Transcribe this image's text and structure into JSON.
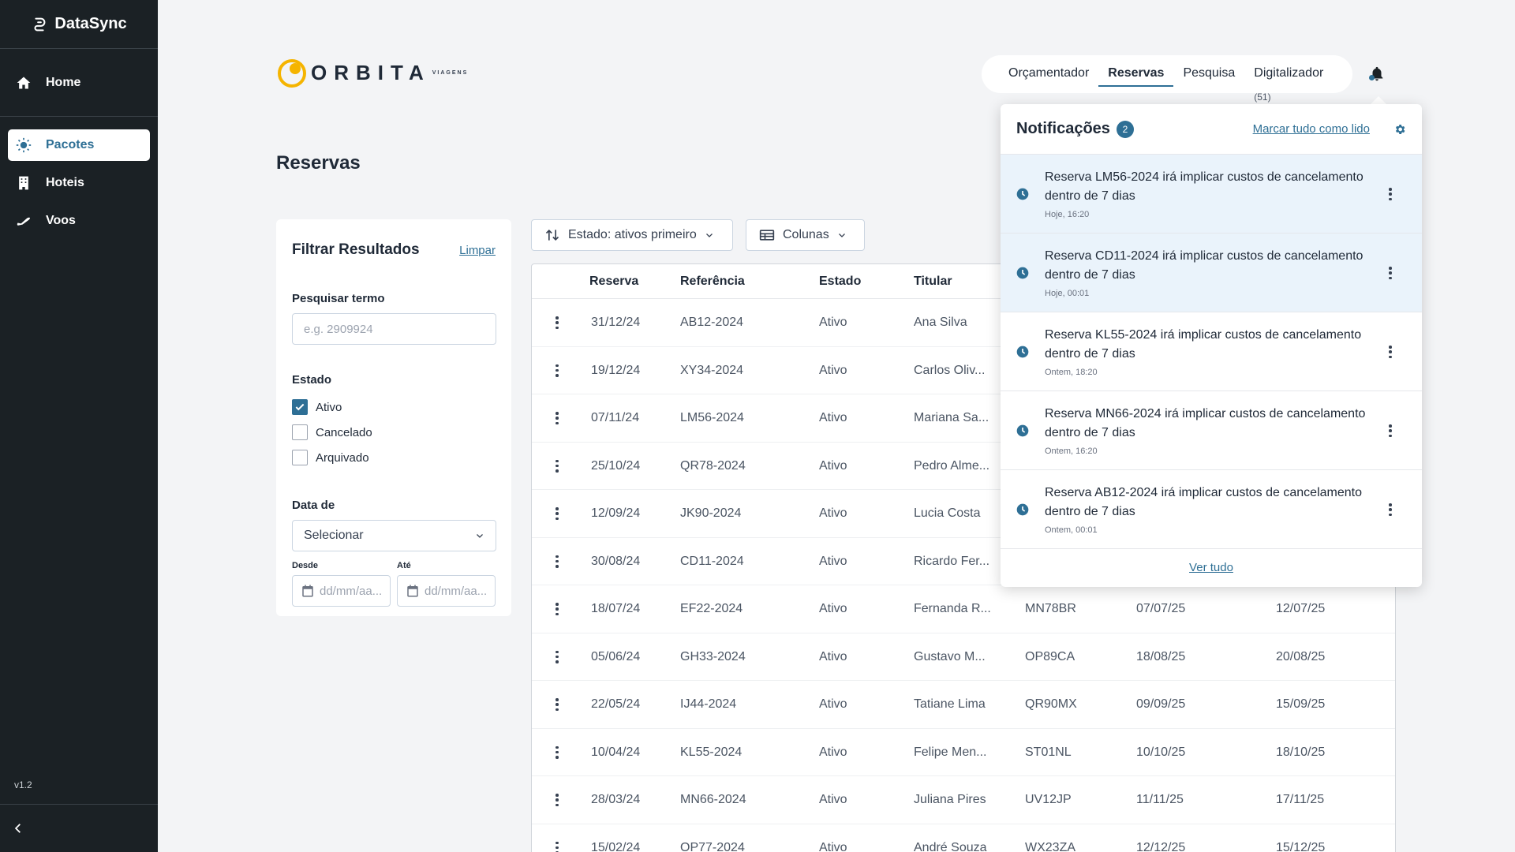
{
  "sidebar": {
    "brand": "DataSync",
    "home": "Home",
    "items": [
      {
        "label": "Pacotes"
      },
      {
        "label": "Hoteis"
      },
      {
        "label": "Voos"
      }
    ],
    "version": "v1.2"
  },
  "logo": {
    "text": "ORBITA",
    "sub": "VIAGENS"
  },
  "topnav": {
    "items": [
      "Orçamentador",
      "Reservas",
      "Pesquisa",
      "Digitalizador"
    ],
    "digitalizador_count": "(51)"
  },
  "page_title": "Reservas",
  "filter": {
    "title": "Filtrar Resultados",
    "clear": "Limpar",
    "search_label": "Pesquisar termo",
    "search_placeholder": "e.g. 2909924",
    "estado_label": "Estado",
    "estado_options": [
      {
        "label": "Ativo",
        "checked": true
      },
      {
        "label": "Cancelado",
        "checked": false
      },
      {
        "label": "Arquivado",
        "checked": false
      }
    ],
    "data_label": "Data de",
    "data_select": "Selecionar",
    "desde_label": "Desde",
    "ate_label": "Até",
    "date_placeholder": "dd/mm/aa..."
  },
  "toolbar": {
    "sort": "Estado: ativos primeiro",
    "columns": "Colunas"
  },
  "table": {
    "headers": [
      "Reserva",
      "Referência",
      "Estado",
      "Titular"
    ],
    "rows": [
      {
        "reserva": "31/12/24",
        "ref": "AB12-2024",
        "estado": "Ativo",
        "titular": "Ana Silva",
        "cod": "",
        "d1": "",
        "d2": ""
      },
      {
        "reserva": "19/12/24",
        "ref": "XY34-2024",
        "estado": "Ativo",
        "titular": "Carlos Oliv...",
        "cod": "",
        "d1": "",
        "d2": ""
      },
      {
        "reserva": "07/11/24",
        "ref": "LM56-2024",
        "estado": "Ativo",
        "titular": "Mariana Sa...",
        "cod": "",
        "d1": "",
        "d2": ""
      },
      {
        "reserva": "25/10/24",
        "ref": "QR78-2024",
        "estado": "Ativo",
        "titular": "Pedro Alme...",
        "cod": "",
        "d1": "",
        "d2": ""
      },
      {
        "reserva": "12/09/24",
        "ref": "JK90-2024",
        "estado": "Ativo",
        "titular": "Lucia Costa",
        "cod": "",
        "d1": "",
        "d2": ""
      },
      {
        "reserva": "30/08/24",
        "ref": "CD11-2024",
        "estado": "Ativo",
        "titular": "Ricardo Fer...",
        "cod": "",
        "d1": "",
        "d2": ""
      },
      {
        "reserva": "18/07/24",
        "ref": "EF22-2024",
        "estado": "Ativo",
        "titular": "Fernanda R...",
        "cod": "MN78BR",
        "d1": "07/07/25",
        "d2": "12/07/25"
      },
      {
        "reserva": "05/06/24",
        "ref": "GH33-2024",
        "estado": "Ativo",
        "titular": "Gustavo M...",
        "cod": "OP89CA",
        "d1": "18/08/25",
        "d2": "20/08/25"
      },
      {
        "reserva": "22/05/24",
        "ref": "IJ44-2024",
        "estado": "Ativo",
        "titular": "Tatiane Lima",
        "cod": "QR90MX",
        "d1": "09/09/25",
        "d2": "15/09/25"
      },
      {
        "reserva": "10/04/24",
        "ref": "KL55-2024",
        "estado": "Ativo",
        "titular": "Felipe Men...",
        "cod": "ST01NL",
        "d1": "10/10/25",
        "d2": "18/10/25"
      },
      {
        "reserva": "28/03/24",
        "ref": "MN66-2024",
        "estado": "Ativo",
        "titular": "Juliana Pires",
        "cod": "UV12JP",
        "d1": "11/11/25",
        "d2": "17/11/25"
      },
      {
        "reserva": "15/02/24",
        "ref": "OP77-2024",
        "estado": "Ativo",
        "titular": "André Souza",
        "cod": "WX23ZA",
        "d1": "12/12/25",
        "d2": "15/12/25"
      }
    ]
  },
  "notifications": {
    "title": "Notificações",
    "badge": "2",
    "mark_all": "Marcar tudo como lido",
    "view_all": "Ver tudo",
    "items": [
      {
        "text": "Reserva LM56-2024 irá implicar custos de cancelamento dentro de 7 dias",
        "time": "Hoje, 16:20",
        "unread": true
      },
      {
        "text": "Reserva CD11-2024 irá implicar custos de cancelamento dentro de 7 dias",
        "time": "Hoje, 00:01",
        "unread": true
      },
      {
        "text": "Reserva KL55-2024 irá implicar custos de cancelamento dentro de 7 dias",
        "time": "Ontem, 18:20",
        "unread": false
      },
      {
        "text": "Reserva MN66-2024 irá implicar custos de cancelamento dentro de 7 dias",
        "time": "Ontem, 16:20",
        "unread": false
      },
      {
        "text": "Reserva AB12-2024 irá implicar custos de cancelamento dentro de 7 dias",
        "time": "Ontem, 00:01",
        "unread": false
      }
    ]
  },
  "colors": {
    "accent": "#2e6f95",
    "sidebar": "#1b2125",
    "logo_yellow": "#f5b400"
  }
}
